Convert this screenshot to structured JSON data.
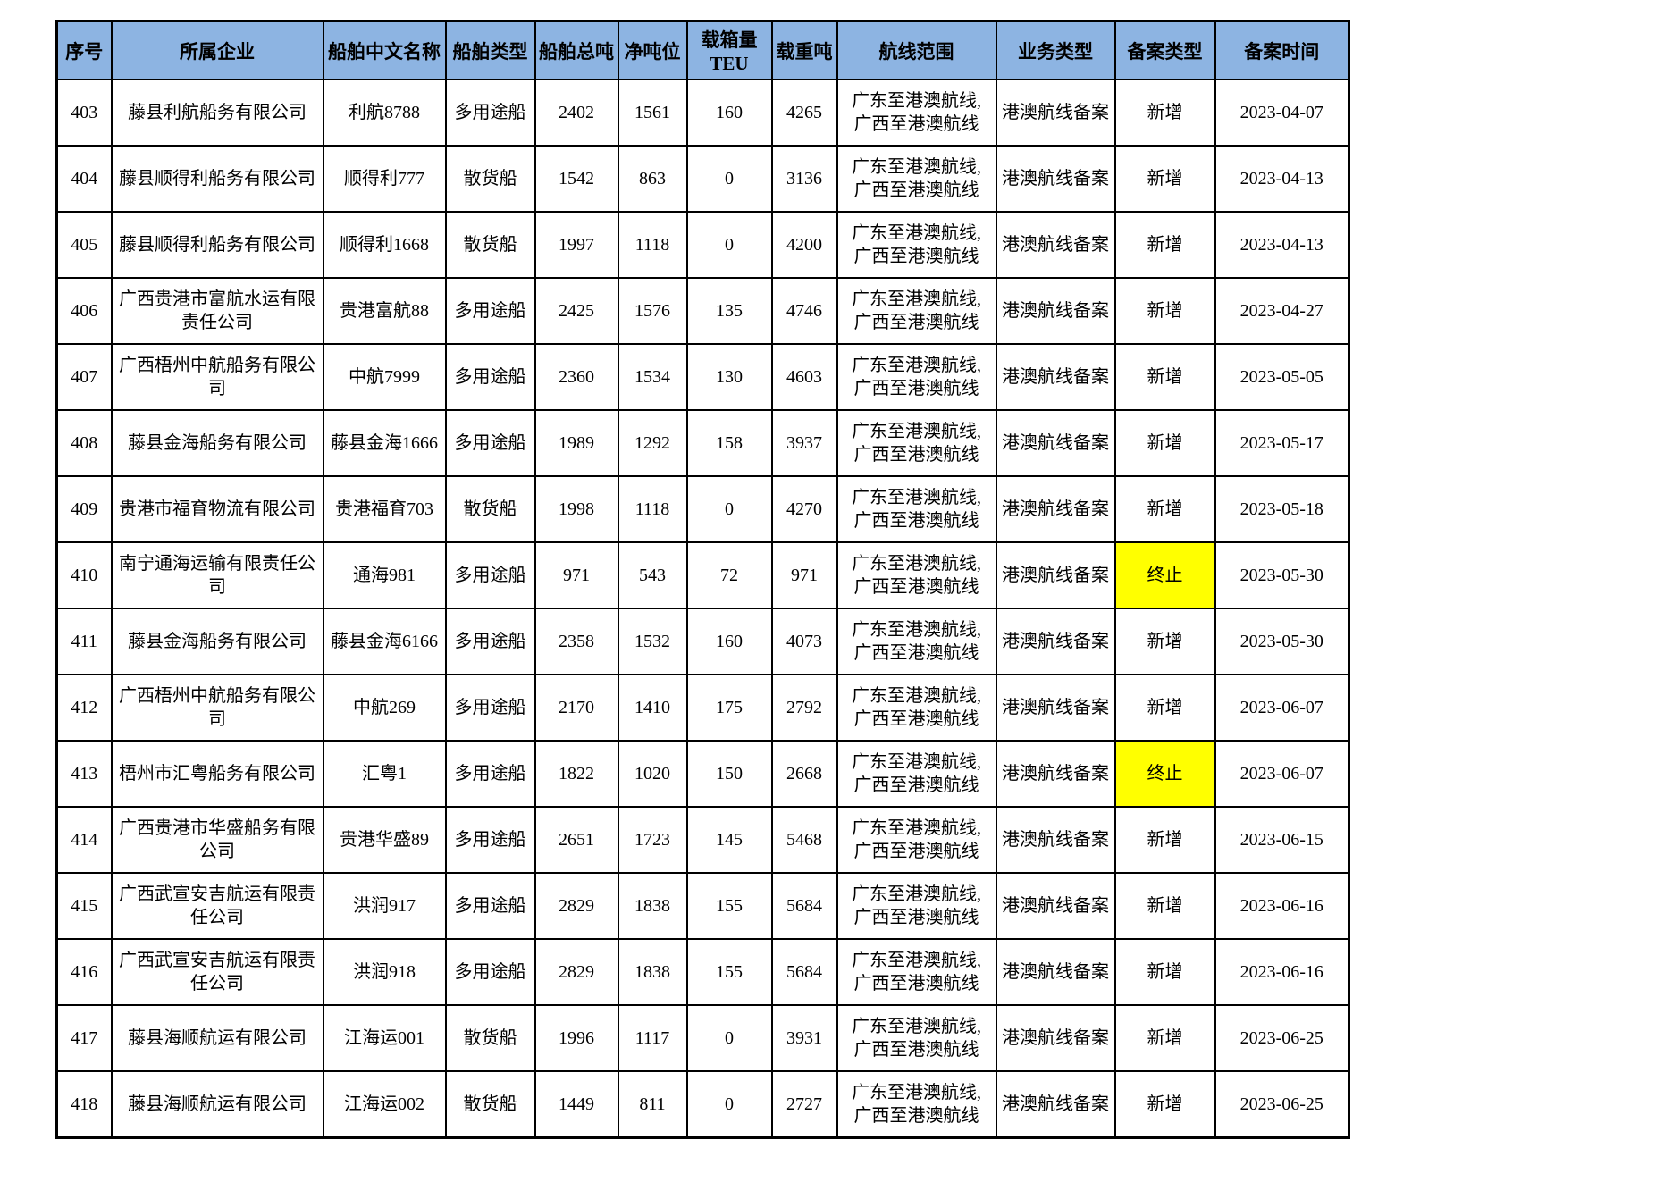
{
  "table": {
    "colors": {
      "header_bg": "#8DB4E2",
      "highlight_bg": "#FFFF00",
      "border": "#000000"
    },
    "columns": [
      {
        "key": "seq",
        "label": "序号"
      },
      {
        "key": "company",
        "label": "所属企业"
      },
      {
        "key": "ship_name",
        "label": "船舶中文名称"
      },
      {
        "key": "ship_type",
        "label": "船舶类型"
      },
      {
        "key": "gross_tonnage",
        "label": "船舶总吨"
      },
      {
        "key": "net_tonnage",
        "label": "净吨位"
      },
      {
        "key": "teu_capacity",
        "label": "载箱量TEU"
      },
      {
        "key": "deadweight",
        "label": "载重吨"
      },
      {
        "key": "route",
        "label": "航线范围"
      },
      {
        "key": "business_type",
        "label": "业务类型"
      },
      {
        "key": "filing_type",
        "label": "备案类型"
      },
      {
        "key": "filing_date",
        "label": "备案时间"
      }
    ],
    "rows": [
      {
        "seq": "403",
        "company": "藤县利航船务有限公司",
        "ship_name": "利航8788",
        "ship_type": "多用途船",
        "gross_tonnage": "2402",
        "net_tonnage": "1561",
        "teu_capacity": "160",
        "deadweight": "4265",
        "route": "广东至港澳航线,\n广西至港澳航线",
        "business_type": "港澳航线备案",
        "filing_type": "新增",
        "filing_type_highlight": false,
        "filing_date": "2023-04-07"
      },
      {
        "seq": "404",
        "company": "藤县顺得利船务有限公司",
        "ship_name": "顺得利777",
        "ship_type": "散货船",
        "gross_tonnage": "1542",
        "net_tonnage": "863",
        "teu_capacity": "0",
        "deadweight": "3136",
        "route": "广东至港澳航线,\n广西至港澳航线",
        "business_type": "港澳航线备案",
        "filing_type": "新增",
        "filing_type_highlight": false,
        "filing_date": "2023-04-13"
      },
      {
        "seq": "405",
        "company": "藤县顺得利船务有限公司",
        "ship_name": "顺得利1668",
        "ship_type": "散货船",
        "gross_tonnage": "1997",
        "net_tonnage": "1118",
        "teu_capacity": "0",
        "deadweight": "4200",
        "route": "广东至港澳航线,\n广西至港澳航线",
        "business_type": "港澳航线备案",
        "filing_type": "新增",
        "filing_type_highlight": false,
        "filing_date": "2023-04-13"
      },
      {
        "seq": "406",
        "company": "广西贵港市富航水运有限责任公司",
        "ship_name": "贵港富航88",
        "ship_type": "多用途船",
        "gross_tonnage": "2425",
        "net_tonnage": "1576",
        "teu_capacity": "135",
        "deadweight": "4746",
        "route": "广东至港澳航线,\n广西至港澳航线",
        "business_type": "港澳航线备案",
        "filing_type": "新增",
        "filing_type_highlight": false,
        "filing_date": "2023-04-27"
      },
      {
        "seq": "407",
        "company": "广西梧州中航船务有限公司",
        "ship_name": "中航7999",
        "ship_type": "多用途船",
        "gross_tonnage": "2360",
        "net_tonnage": "1534",
        "teu_capacity": "130",
        "deadweight": "4603",
        "route": "广东至港澳航线,\n广西至港澳航线",
        "business_type": "港澳航线备案",
        "filing_type": "新增",
        "filing_type_highlight": false,
        "filing_date": "2023-05-05"
      },
      {
        "seq": "408",
        "company": "藤县金海船务有限公司",
        "ship_name": "藤县金海1666",
        "ship_type": "多用途船",
        "gross_tonnage": "1989",
        "net_tonnage": "1292",
        "teu_capacity": "158",
        "deadweight": "3937",
        "route": "广东至港澳航线,\n广西至港澳航线",
        "business_type": "港澳航线备案",
        "filing_type": "新增",
        "filing_type_highlight": false,
        "filing_date": "2023-05-17"
      },
      {
        "seq": "409",
        "company": "贵港市福育物流有限公司",
        "ship_name": "贵港福育703",
        "ship_type": "散货船",
        "gross_tonnage": "1998",
        "net_tonnage": "1118",
        "teu_capacity": "0",
        "deadweight": "4270",
        "route": "广东至港澳航线,\n广西至港澳航线",
        "business_type": "港澳航线备案",
        "filing_type": "新增",
        "filing_type_highlight": false,
        "filing_date": "2023-05-18"
      },
      {
        "seq": "410",
        "company": "南宁通海运输有限责任公司",
        "ship_name": "通海981",
        "ship_type": "多用途船",
        "gross_tonnage": "971",
        "net_tonnage": "543",
        "teu_capacity": "72",
        "deadweight": "971",
        "route": "广东至港澳航线,\n广西至港澳航线",
        "business_type": "港澳航线备案",
        "filing_type": "终止",
        "filing_type_highlight": true,
        "filing_date": "2023-05-30"
      },
      {
        "seq": "411",
        "company": "藤县金海船务有限公司",
        "ship_name": "藤县金海6166",
        "ship_type": "多用途船",
        "gross_tonnage": "2358",
        "net_tonnage": "1532",
        "teu_capacity": "160",
        "deadweight": "4073",
        "route": "广东至港澳航线,\n广西至港澳航线",
        "business_type": "港澳航线备案",
        "filing_type": "新增",
        "filing_type_highlight": false,
        "filing_date": "2023-05-30"
      },
      {
        "seq": "412",
        "company": "广西梧州中航船务有限公司",
        "ship_name": "中航269",
        "ship_type": "多用途船",
        "gross_tonnage": "2170",
        "net_tonnage": "1410",
        "teu_capacity": "175",
        "deadweight": "2792",
        "route": "广东至港澳航线,\n广西至港澳航线",
        "business_type": "港澳航线备案",
        "filing_type": "新增",
        "filing_type_highlight": false,
        "filing_date": "2023-06-07"
      },
      {
        "seq": "413",
        "company": "梧州市汇粤船务有限公司",
        "ship_name": "汇粤1",
        "ship_type": "多用途船",
        "gross_tonnage": "1822",
        "net_tonnage": "1020",
        "teu_capacity": "150",
        "deadweight": "2668",
        "route": "广东至港澳航线,\n广西至港澳航线",
        "business_type": "港澳航线备案",
        "filing_type": "终止",
        "filing_type_highlight": true,
        "filing_date": "2023-06-07"
      },
      {
        "seq": "414",
        "company": "广西贵港市华盛船务有限公司",
        "ship_name": "贵港华盛89",
        "ship_type": "多用途船",
        "gross_tonnage": "2651",
        "net_tonnage": "1723",
        "teu_capacity": "145",
        "deadweight": "5468",
        "route": "广东至港澳航线,\n广西至港澳航线",
        "business_type": "港澳航线备案",
        "filing_type": "新增",
        "filing_type_highlight": false,
        "filing_date": "2023-06-15"
      },
      {
        "seq": "415",
        "company": "广西武宣安吉航运有限责任公司",
        "ship_name": "洪润917",
        "ship_type": "多用途船",
        "gross_tonnage": "2829",
        "net_tonnage": "1838",
        "teu_capacity": "155",
        "deadweight": "5684",
        "route": "广东至港澳航线,\n广西至港澳航线",
        "business_type": "港澳航线备案",
        "filing_type": "新增",
        "filing_type_highlight": false,
        "filing_date": "2023-06-16"
      },
      {
        "seq": "416",
        "company": "广西武宣安吉航运有限责任公司",
        "ship_name": "洪润918",
        "ship_type": "多用途船",
        "gross_tonnage": "2829",
        "net_tonnage": "1838",
        "teu_capacity": "155",
        "deadweight": "5684",
        "route": "广东至港澳航线,\n广西至港澳航线",
        "business_type": "港澳航线备案",
        "filing_type": "新增",
        "filing_type_highlight": false,
        "filing_date": "2023-06-16"
      },
      {
        "seq": "417",
        "company": "藤县海顺航运有限公司",
        "ship_name": "江海运001",
        "ship_type": "散货船",
        "gross_tonnage": "1996",
        "net_tonnage": "1117",
        "teu_capacity": "0",
        "deadweight": "3931",
        "route": "广东至港澳航线,\n广西至港澳航线",
        "business_type": "港澳航线备案",
        "filing_type": "新增",
        "filing_type_highlight": false,
        "filing_date": "2023-06-25"
      },
      {
        "seq": "418",
        "company": "藤县海顺航运有限公司",
        "ship_name": "江海运002",
        "ship_type": "散货船",
        "gross_tonnage": "1449",
        "net_tonnage": "811",
        "teu_capacity": "0",
        "deadweight": "2727",
        "route": "广东至港澳航线,\n广西至港澳航线",
        "business_type": "港澳航线备案",
        "filing_type": "新增",
        "filing_type_highlight": false,
        "filing_date": "2023-06-25"
      }
    ]
  }
}
